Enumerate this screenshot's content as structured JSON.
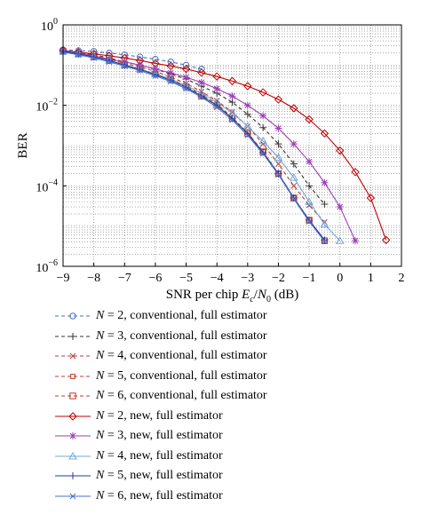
{
  "chart_data": {
    "type": "line",
    "xlabel_parts": [
      "SNR per chip ",
      "E",
      "c",
      "/",
      "N",
      "0",
      " (dB)"
    ],
    "ylabel": "BER",
    "xlim": [
      -9,
      2
    ],
    "ylim_log10": [
      -6,
      0
    ],
    "yscale": "log",
    "grid": "dotted, major and minor",
    "legend_placement": "below plot",
    "x_ticks": [
      "−9",
      "−8",
      "−7",
      "−6",
      "−5",
      "−4",
      "−3",
      "−2",
      "−1",
      "0",
      "1",
      "2"
    ],
    "x_tick_values": [
      -9,
      -8,
      -7,
      -6,
      -5,
      -4,
      -3,
      -2,
      -1,
      0,
      1,
      2
    ],
    "y_ticks": [
      {
        "base": "10",
        "exp": "0",
        "value_log10": 0
      },
      {
        "base": "10",
        "exp": "−2",
        "value_log10": -2
      },
      {
        "base": "10",
        "exp": "−4",
        "value_log10": -4
      },
      {
        "base": "10",
        "exp": "−6",
        "value_log10": -6
      }
    ],
    "series": [
      {
        "n_label": "N",
        "rest": " = 2, conventional, full estimator",
        "color": "#4472c4",
        "dash": "dash",
        "marker": "circle",
        "x": [
          -9,
          -8.5,
          -8,
          -7.5,
          -7,
          -6.5,
          -6,
          -5.5,
          -5,
          -4.5
        ],
        "y": [
          0.24,
          0.23,
          0.22,
          0.2,
          0.18,
          0.16,
          0.14,
          0.12,
          0.1,
          0.08
        ]
      },
      {
        "n_label": "N",
        "rest": " = 3, conventional, full estimator",
        "color": "#333333",
        "dash": "dash",
        "marker": "plus",
        "x": [
          -9,
          -8.5,
          -8,
          -7.5,
          -7,
          -6.5,
          -6,
          -5.5,
          -5,
          -4.5,
          -4,
          -3.5,
          -3,
          -2.5,
          -2,
          -1.5,
          -1,
          -0.5
        ],
        "y": [
          0.23,
          0.2,
          0.18,
          0.15,
          0.12,
          0.1,
          0.08,
          0.06,
          0.045,
          0.03,
          0.02,
          0.012,
          0.006,
          0.0028,
          0.0011,
          0.00035,
          0.0001,
          3.5e-05
        ]
      },
      {
        "n_label": "N",
        "rest": " = 4, conventional, full estimator",
        "color": "#c0392b",
        "dash": "dash",
        "marker": "x",
        "x": [
          -9,
          -8.5,
          -8,
          -7.5,
          -7,
          -6.5,
          -6,
          -5.5,
          -5,
          -4.5,
          -4,
          -3.5,
          -3,
          -2.5,
          -2,
          -1.5,
          -1,
          -0.5
        ],
        "y": [
          0.23,
          0.2,
          0.17,
          0.14,
          0.11,
          0.09,
          0.07,
          0.05,
          0.035,
          0.022,
          0.013,
          0.0068,
          0.003,
          0.0011,
          0.00035,
          0.0001,
          3.3e-05,
          1.25e-05
        ]
      },
      {
        "n_label": "N",
        "rest": " = 5, conventional, full estimator",
        "color": "#c0392b",
        "dash": "dash",
        "marker": "square-small",
        "x": [
          -9,
          -8.5,
          -8,
          -7.5,
          -7,
          -6.5,
          -6,
          -5.5,
          -5,
          -4.5,
          -4,
          -3.5,
          -3,
          -2.5,
          -2,
          -1.5,
          -1,
          -0.5
        ],
        "y": [
          0.22,
          0.19,
          0.16,
          0.13,
          0.1,
          0.08,
          0.06,
          0.045,
          0.03,
          0.018,
          0.011,
          0.005,
          0.0021,
          0.0007,
          0.0002,
          5e-05,
          1.4e-05,
          4.5e-06
        ]
      },
      {
        "n_label": "N",
        "rest": " = 6, conventional, full estimator",
        "color": "#c0392b",
        "dash": "dash",
        "marker": "square",
        "x": [
          -9,
          -8.5,
          -8,
          -7.5,
          -7,
          -6.5,
          -6,
          -5.5,
          -5,
          -4.5,
          -4,
          -3.5,
          -3,
          -2.5,
          -2,
          -1.5,
          -1,
          -0.5
        ],
        "y": [
          0.22,
          0.19,
          0.16,
          0.13,
          0.1,
          0.08,
          0.06,
          0.044,
          0.029,
          0.017,
          0.01,
          0.0048,
          0.002,
          0.0007,
          0.0002,
          5e-05,
          1.4e-05,
          4.3e-06
        ]
      },
      {
        "n_label": "N",
        "rest": " = 2, new, full estimator",
        "color": "#c00000",
        "dash": "solid",
        "marker": "diamond",
        "x": [
          -9,
          -8.5,
          -8,
          -7.5,
          -7,
          -6.5,
          -6,
          -5.5,
          -5,
          -4.5,
          -4,
          -3.5,
          -3,
          -2.5,
          -2,
          -1.5,
          -1,
          -0.5,
          0,
          0.5,
          1,
          1.5
        ],
        "y": [
          0.23,
          0.21,
          0.19,
          0.17,
          0.15,
          0.13,
          0.11,
          0.095,
          0.08,
          0.065,
          0.052,
          0.04,
          0.03,
          0.021,
          0.014,
          0.0085,
          0.0045,
          0.002,
          0.00075,
          0.00022,
          5e-05,
          4.5e-06
        ]
      },
      {
        "n_label": "N",
        "rest": " = 3, new, full estimator",
        "color": "#9b3fb5",
        "dash": "solid",
        "marker": "star",
        "x": [
          -9,
          -8.5,
          -8,
          -7.5,
          -7,
          -6.5,
          -6,
          -5.5,
          -5,
          -4.5,
          -4,
          -3.5,
          -3,
          -2.5,
          -2,
          -1.5,
          -1,
          -0.5,
          0,
          0.5
        ],
        "y": [
          0.23,
          0.2,
          0.17,
          0.14,
          0.12,
          0.1,
          0.08,
          0.064,
          0.05,
          0.037,
          0.026,
          0.017,
          0.01,
          0.0055,
          0.0027,
          0.0011,
          0.0004,
          0.00012,
          3e-05,
          4.3e-06
        ]
      },
      {
        "n_label": "N",
        "rest": " = 4, new, full estimator",
        "color": "#6fa8dc",
        "dash": "solid",
        "marker": "triangle",
        "x": [
          -9,
          -8.5,
          -8,
          -7.5,
          -7,
          -6.5,
          -6,
          -5.5,
          -5,
          -4.5,
          -4,
          -3.5,
          -3,
          -2.5,
          -2,
          -1.5,
          -1,
          -0.5,
          0
        ],
        "y": [
          0.22,
          0.19,
          0.16,
          0.13,
          0.1,
          0.08,
          0.06,
          0.045,
          0.031,
          0.02,
          0.012,
          0.0065,
          0.003,
          0.0013,
          0.0005,
          0.00016,
          4e-05,
          1.1e-05,
          4.3e-06
        ]
      },
      {
        "n_label": "N",
        "rest": " = 5, new, full estimator",
        "color": "#1f3f8f",
        "dash": "solid",
        "marker": "plus",
        "x": [
          -9,
          -8.5,
          -8,
          -7.5,
          -7,
          -6.5,
          -6,
          -5.5,
          -5,
          -4.5,
          -4,
          -3.5,
          -3,
          -2.5,
          -2,
          -1.5,
          -1,
          -0.5
        ],
        "y": [
          0.22,
          0.19,
          0.16,
          0.13,
          0.1,
          0.078,
          0.058,
          0.042,
          0.028,
          0.017,
          0.01,
          0.0047,
          0.002,
          0.00068,
          0.0002,
          5e-05,
          1.4e-05,
          4.5e-06
        ]
      },
      {
        "n_label": "N",
        "rest": " = 6, new, full estimator",
        "color": "#4a6fd1",
        "dash": "solid",
        "marker": "x",
        "x": [
          -9,
          -8.5,
          -8,
          -7.5,
          -7,
          -6.5,
          -6,
          -5.5,
          -5,
          -4.5,
          -4,
          -3.5,
          -3,
          -2.5,
          -2,
          -1.5,
          -1,
          -0.5
        ],
        "y": [
          0.21,
          0.18,
          0.15,
          0.12,
          0.095,
          0.073,
          0.054,
          0.039,
          0.026,
          0.016,
          0.009,
          0.0043,
          0.0018,
          0.00063,
          0.00019,
          4.8e-05,
          1.3e-05,
          4.2e-06
        ]
      }
    ]
  }
}
